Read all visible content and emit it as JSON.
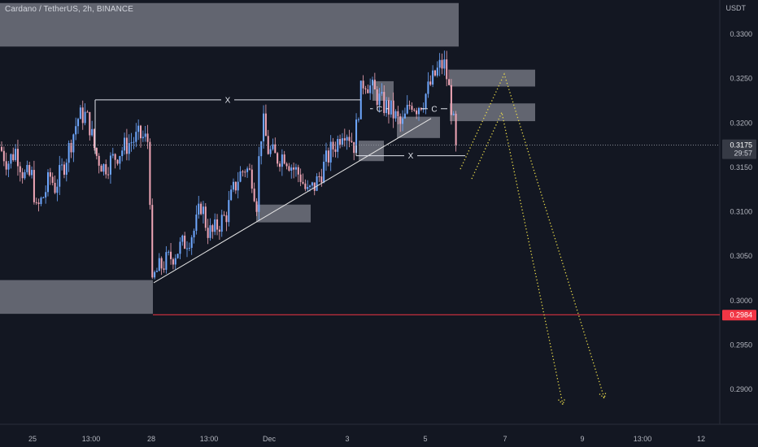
{
  "header": {
    "symbol_title": "Cardano / TetherUS, 2h, BINANCE",
    "currency": "USDT"
  },
  "colors": {
    "background": "#131722",
    "bull": "#6fa8ff",
    "bear": "#f0a6b6",
    "zone": "#787b86",
    "red_line": "#f23645",
    "projection": "#e8d94a",
    "trendline": "#e6e6e6",
    "current_price_badge": "#363a45"
  },
  "chart_data": {
    "type": "candlestick",
    "y_axis": {
      "ticks": [
        "0.3300",
        "0.3250",
        "0.3200",
        "0.3150",
        "0.3100",
        "0.3050",
        "0.3000",
        "0.2950",
        "0.2900"
      ],
      "range": [
        0.2872,
        0.3345
      ]
    },
    "x_axis": {
      "ticks": [
        "25",
        "13:00",
        "28",
        "13:00",
        "Dec",
        "3",
        "5",
        "7",
        "9",
        "13:00",
        "12"
      ]
    },
    "current_price": {
      "value": 0.3175,
      "label": "0.3175",
      "countdown": "29:57"
    },
    "red_level": {
      "value": 0.2984,
      "label": "0.2984"
    },
    "price_path": [
      [
        0,
        0.3173
      ],
      [
        10,
        0.3155
      ],
      [
        20,
        0.317
      ],
      [
        30,
        0.314
      ],
      [
        40,
        0.314
      ],
      [
        45,
        0.31
      ],
      [
        55,
        0.312
      ],
      [
        62,
        0.314
      ],
      [
        68,
        0.3128
      ],
      [
        78,
        0.315
      ],
      [
        88,
        0.318
      ],
      [
        96,
        0.3205
      ],
      [
        104,
        0.321
      ],
      [
        110,
        0.32
      ],
      [
        118,
        0.3165
      ],
      [
        128,
        0.315
      ],
      [
        140,
        0.316
      ],
      [
        150,
        0.317
      ],
      [
        160,
        0.3178
      ],
      [
        172,
        0.3185
      ],
      [
        182,
        0.318
      ],
      [
        185,
        0.3115
      ],
      [
        187,
        0.301
      ],
      [
        191,
        0.303
      ],
      [
        200,
        0.304
      ],
      [
        212,
        0.305
      ],
      [
        222,
        0.306
      ],
      [
        232,
        0.307
      ],
      [
        240,
        0.308
      ],
      [
        248,
        0.311
      ],
      [
        255,
        0.308
      ],
      [
        262,
        0.3075
      ],
      [
        268,
        0.3085
      ],
      [
        278,
        0.3095
      ],
      [
        286,
        0.312
      ],
      [
        294,
        0.314
      ],
      [
        302,
        0.315
      ],
      [
        310,
        0.314
      ],
      [
        316,
        0.311
      ],
      [
        320,
        0.318
      ],
      [
        324,
        0.32
      ],
      [
        330,
        0.317
      ],
      [
        340,
        0.316
      ],
      [
        350,
        0.3165
      ],
      [
        360,
        0.315
      ],
      [
        370,
        0.314
      ],
      [
        378,
        0.312
      ],
      [
        388,
        0.313
      ],
      [
        398,
        0.315
      ],
      [
        408,
        0.317
      ],
      [
        416,
        0.318
      ],
      [
        422,
        0.3195
      ],
      [
        428,
        0.319
      ],
      [
        436,
        0.3175
      ],
      [
        443,
        0.323
      ],
      [
        448,
        0.325
      ],
      [
        456,
        0.324
      ],
      [
        464,
        0.323
      ],
      [
        472,
        0.322
      ],
      [
        480,
        0.3215
      ],
      [
        488,
        0.3205
      ],
      [
        494,
        0.3195
      ],
      [
        500,
        0.321
      ],
      [
        506,
        0.3225
      ],
      [
        512,
        0.3218
      ],
      [
        520,
        0.3225
      ],
      [
        528,
        0.324
      ],
      [
        536,
        0.3255
      ],
      [
        542,
        0.3265
      ],
      [
        547,
        0.3265
      ],
      [
        552,
        0.324
      ],
      [
        556,
        0.3215
      ],
      [
        561,
        0.3175
      ]
    ],
    "zones": [
      {
        "x0": 0,
        "x1": 564,
        "top": 0.3335,
        "bottom": 0.3286
      },
      {
        "x0": 0,
        "x1": 188,
        "top": 0.3023,
        "bottom": 0.2985
      },
      {
        "x0": 315,
        "x1": 382,
        "top": 0.3108,
        "bottom": 0.3088
      },
      {
        "x0": 441,
        "x1": 472,
        "top": 0.318,
        "bottom": 0.3157
      },
      {
        "x0": 458,
        "x1": 484,
        "top": 0.3247,
        "bottom": 0.3225
      },
      {
        "x0": 488,
        "x1": 541,
        "top": 0.3207,
        "bottom": 0.3183
      },
      {
        "x0": 553,
        "x1": 658,
        "top": 0.326,
        "bottom": 0.3241
      },
      {
        "x0": 553,
        "x1": 658,
        "top": 0.3222,
        "bottom": 0.3202
      }
    ],
    "annotations": [
      {
        "label": "X",
        "y": 0.3226,
        "x0": 117,
        "x1": 443,
        "tick_down": [
          117,
          0.3165
        ]
      },
      {
        "label": "X",
        "y": 0.3163,
        "x0": 438,
        "x1": 572,
        "tick_up": [
          438,
          0.3175
        ]
      },
      {
        "label": "C",
        "y": 0.3216,
        "x0": 455,
        "x1": 478
      },
      {
        "label": "C",
        "y": 0.3216,
        "x0": 518,
        "x1": 550
      }
    ],
    "trendline": {
      "x0": 189,
      "y0": 0.302,
      "x1": 530,
      "y1": 0.3205
    },
    "projections": [
      {
        "points": [
          [
            566,
            0.3148
          ],
          [
            620,
            0.3255
          ],
          [
            743,
            0.289
          ]
        ]
      },
      {
        "points": [
          [
            580,
            0.3137
          ],
          [
            617,
            0.3212
          ],
          [
            692,
            0.2883
          ]
        ]
      }
    ]
  }
}
